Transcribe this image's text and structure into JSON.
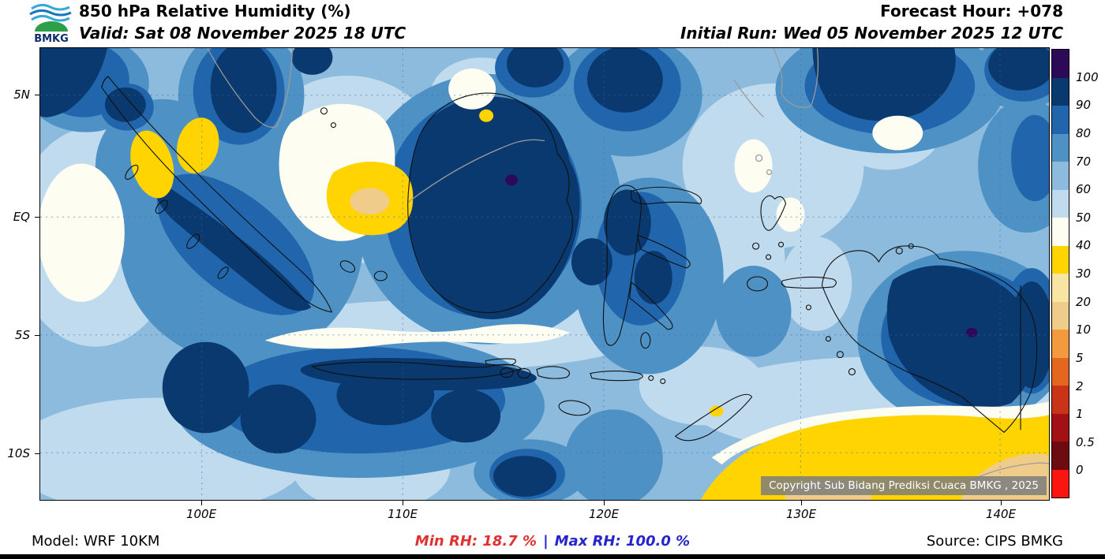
{
  "header": {
    "logo_text": "BMKG",
    "title": "850 hPa Relative Humidity (%)",
    "valid_line": "Valid: Sat 08 November 2025 18 UTC",
    "forecast_hour": "Forecast Hour: +078",
    "initial_run": "Initial Run: Wed 05 November 2025 12 UTC"
  },
  "map": {
    "lat_labels": [
      "5N",
      "EQ",
      "5S",
      "10S"
    ],
    "lon_labels": [
      "100E",
      "110E",
      "120E",
      "130E",
      "140E"
    ],
    "copyright": "Copyright Sub Bidang Prediksi Cuaca BMKG , 2025"
  },
  "legend": {
    "title": "Relative Humidity (%)",
    "tick_labels": [
      "100",
      "90",
      "80",
      "70",
      "60",
      "50",
      "40",
      "30",
      "20",
      "10",
      "5",
      "2",
      "1",
      "0.5",
      "0"
    ],
    "palette": {
      "p100": "#2d0a57",
      "b90": "#09396e",
      "b80": "#2166ac",
      "b70": "#4e92c5",
      "b60": "#8cbbdd",
      "b50": "#c0dbee",
      "w40": "#fdfdf1",
      "y30": "#ffd400",
      "y20": "#f8e5a3",
      "y10": "#f0cc8a",
      "o5": "#f49a3e",
      "o2": "#e4661f",
      "r1": "#c93418",
      "r05": "#a31115",
      "r0": "#6e0b10",
      "rneg": "#fb1510"
    }
  },
  "footer": {
    "model": "Model: WRF 10KM",
    "min_rh": "Min RH:  18.7 %",
    "separator": "|",
    "max_rh": "Max RH: 100.0 %",
    "source": "Source: CIPS BMKG"
  }
}
